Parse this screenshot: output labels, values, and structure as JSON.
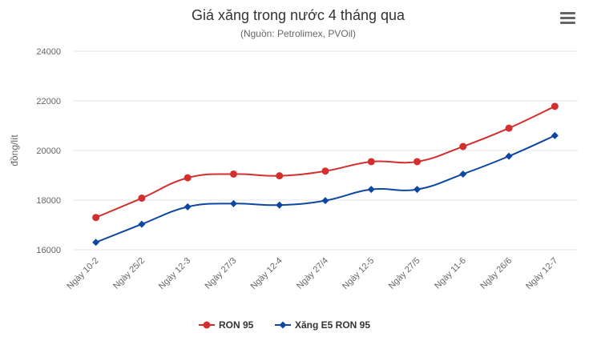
{
  "chart_data": {
    "type": "line",
    "title": "Giá xăng trong nước 4 tháng qua",
    "subtitle": "(Nguồn: Petrolimex, PVOil)",
    "ylabel": "đồng/lít",
    "xlabel": "",
    "categories": [
      "Ngày 10-2",
      "Ngày 25/2",
      "Ngày 12-3",
      "Ngày 27/3",
      "Ngày 12-4",
      "Ngày 27/4",
      "Ngày 12-5",
      "Ngày 27/5",
      "Ngày 11-6",
      "Ngày 26/6",
      "Ngày 12-7"
    ],
    "yticks": [
      "16000",
      "18000",
      "20000",
      "22000",
      "24000"
    ],
    "ylim": [
      16000,
      24000
    ],
    "grid": true,
    "legend_position": "bottom-center",
    "series": [
      {
        "name": "RON 95",
        "color": "#d32f2f",
        "marker": "circle",
        "values": [
          17300,
          18080,
          18900,
          19050,
          18980,
          19170,
          19550,
          19550,
          20160,
          20900,
          21780
        ]
      },
      {
        "name": "Xăng E5 RON 95",
        "color": "#0d47a1",
        "marker": "diamond",
        "values": [
          16300,
          17030,
          17730,
          17860,
          17800,
          17980,
          18430,
          18430,
          19050,
          19770,
          20600
        ]
      }
    ]
  },
  "menu": {
    "icon": "hamburger-menu-icon"
  }
}
